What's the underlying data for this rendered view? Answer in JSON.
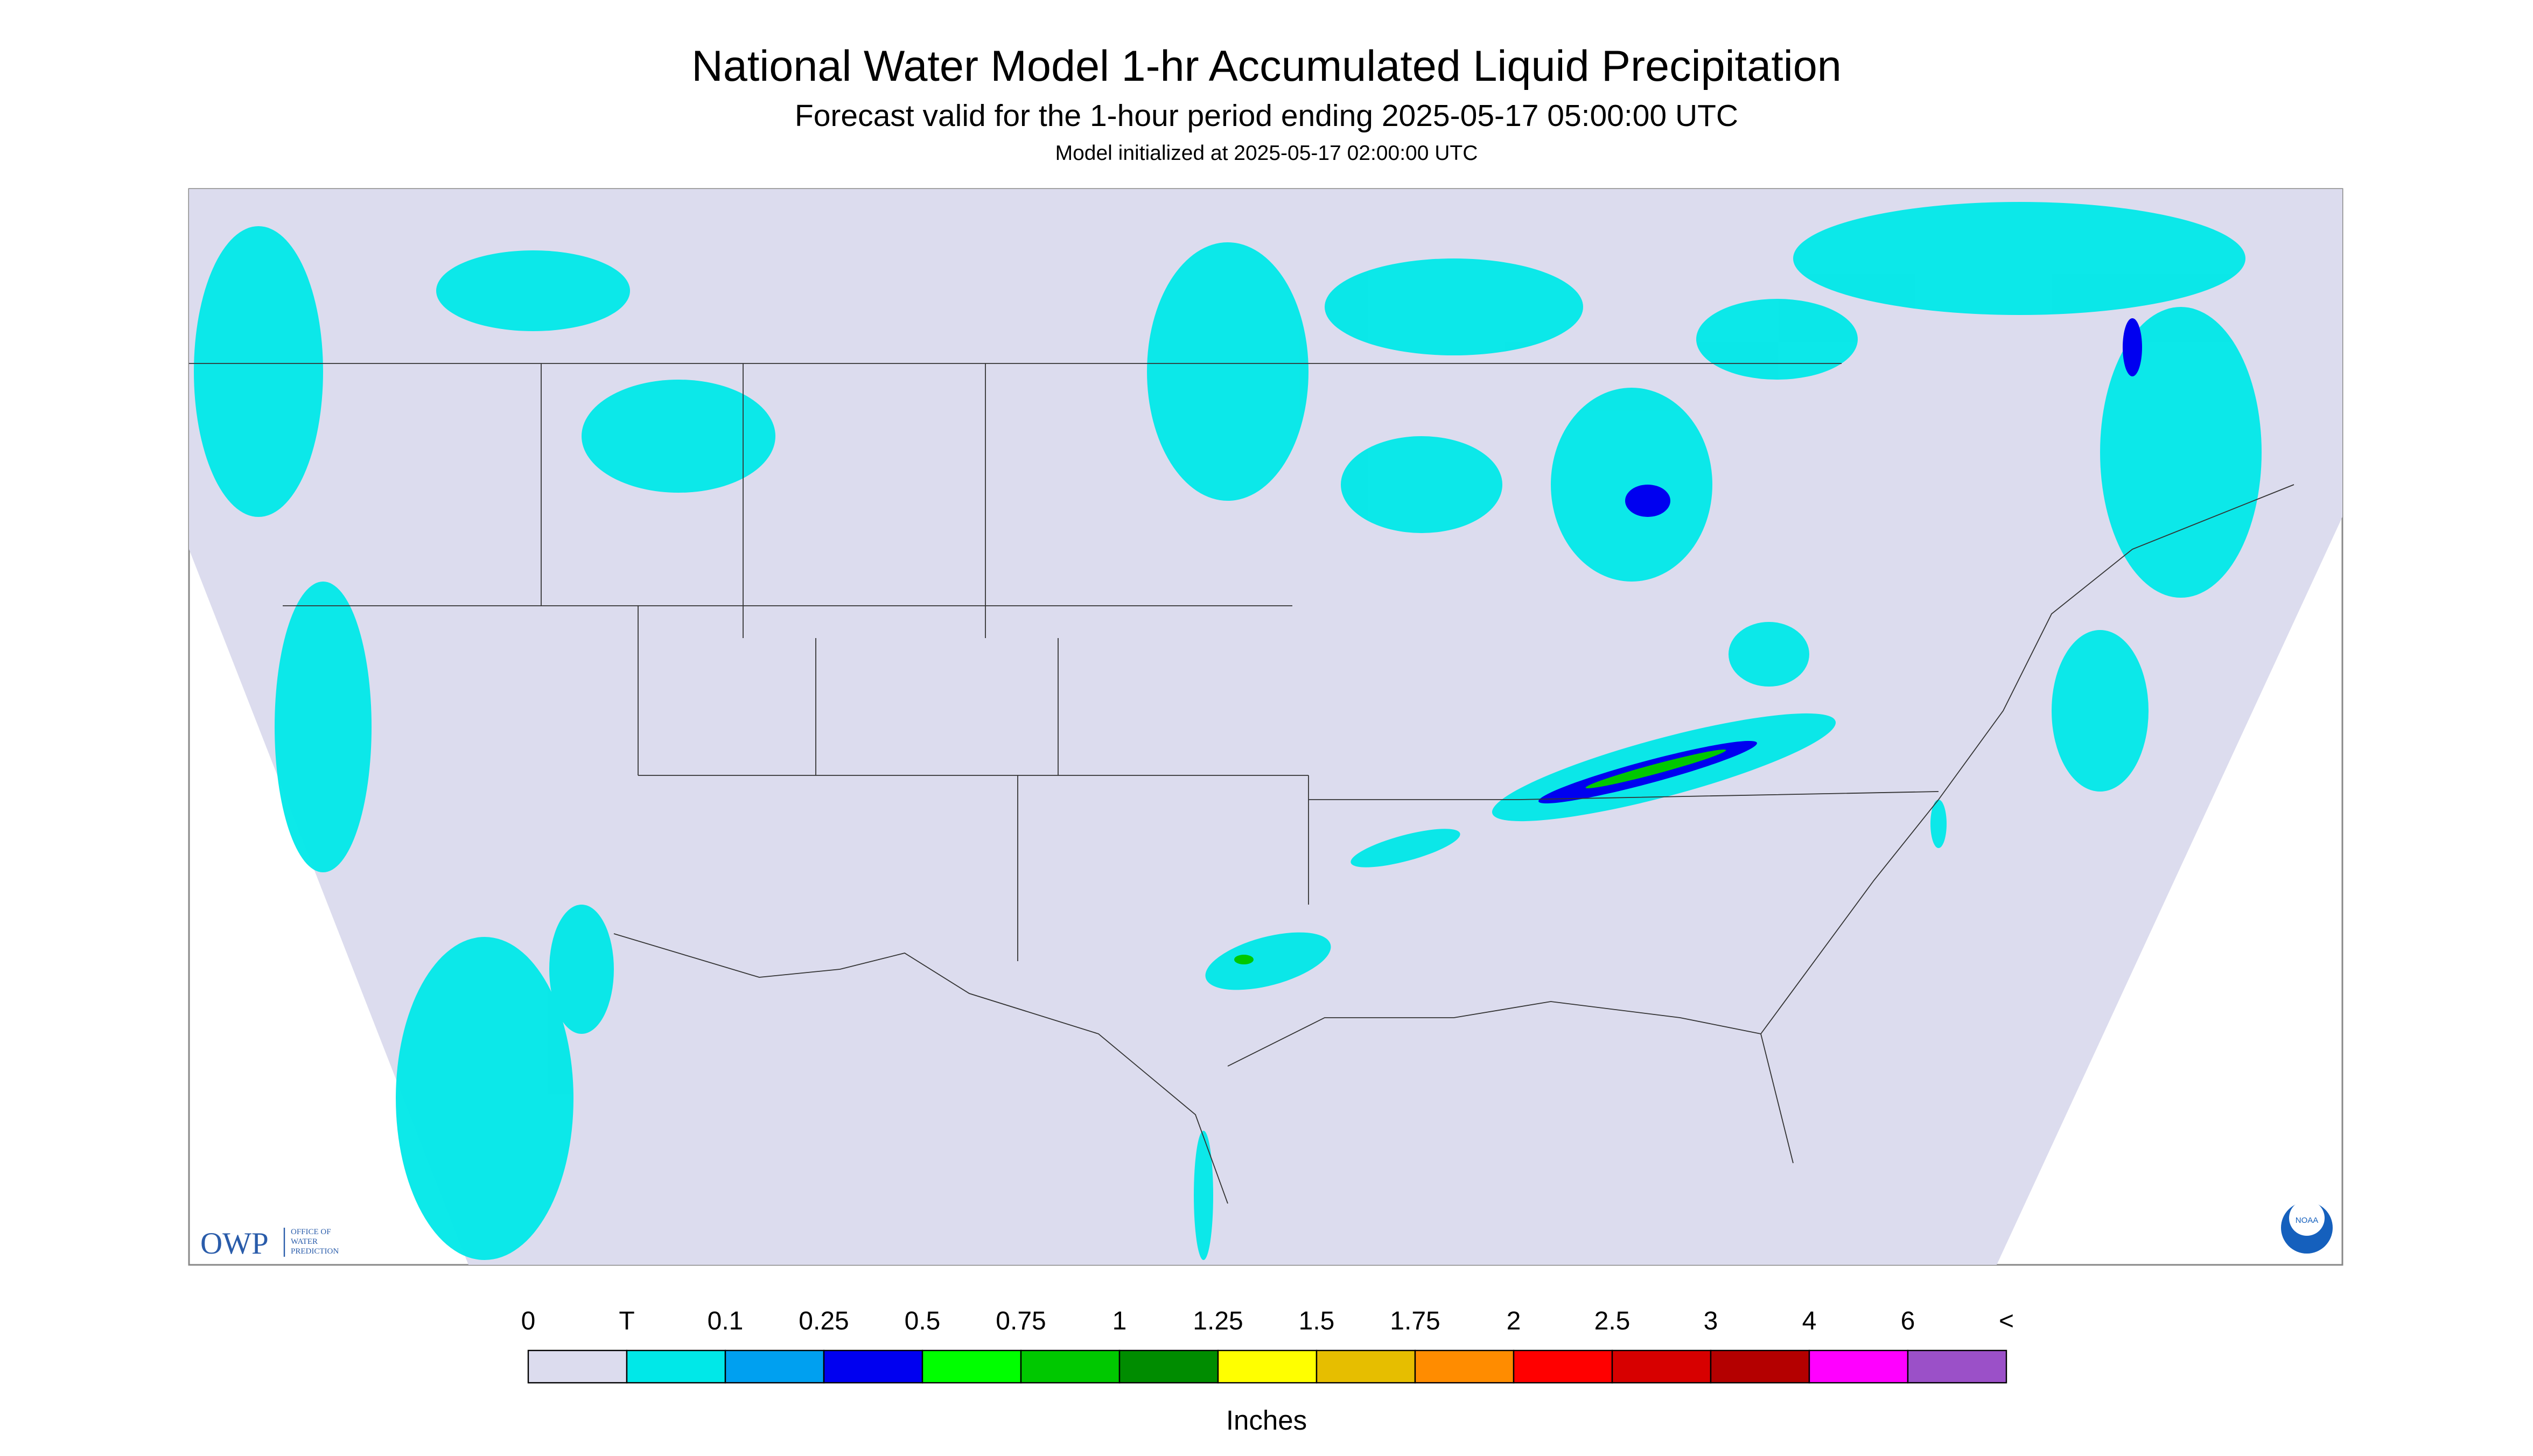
{
  "header": {
    "title": "National Water Model 1-hr Accumulated Liquid Precipitation",
    "subtitle": "Forecast valid for the 1-hour period ending 2025-05-17 05:00:00 UTC",
    "init": "Model initialized at 2025-05-17 02:00:00 UTC"
  },
  "logo": {
    "owp": "OWP",
    "office": [
      "OFFICE OF",
      "WATER",
      "PREDICTION"
    ],
    "noaa": "NOAA"
  },
  "legend": {
    "labels": [
      "0",
      "T",
      "0.1",
      "0.25",
      "0.5",
      "0.75",
      "1",
      "1.25",
      "1.5",
      "1.75",
      "2",
      "2.5",
      "3",
      "4",
      "6",
      "<"
    ],
    "colors": [
      "#dcdcee",
      "#00e8e8",
      "#00a0f0",
      "#0000f0",
      "#00ff00",
      "#00c800",
      "#008c00",
      "#ffff00",
      "#e6be00",
      "#ff8c00",
      "#ff0000",
      "#d70000",
      "#b40000",
      "#ff00ff",
      "#9b50c8"
    ],
    "unit": "Inches"
  }
}
